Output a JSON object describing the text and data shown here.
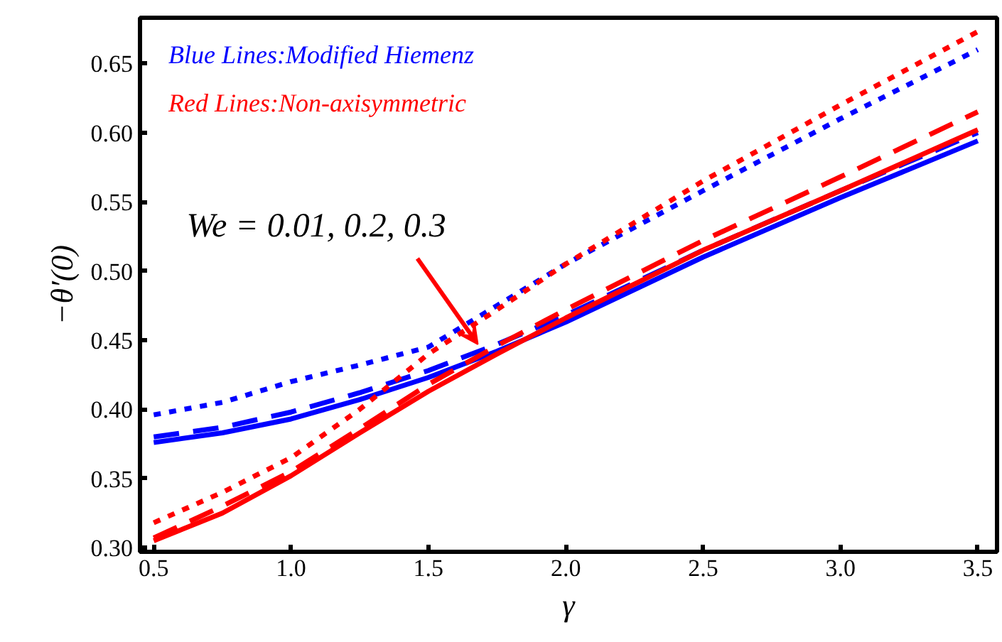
{
  "chart_data": {
    "type": "line",
    "xlabel": "γ",
    "ylabel": "−θ′(0)",
    "xlim": [
      0.45,
      3.57
    ],
    "ylim": [
      0.297,
      0.683
    ],
    "xticks": [
      {
        "value": 0.5,
        "label": "0.5"
      },
      {
        "value": 1.0,
        "label": "1.0"
      },
      {
        "value": 1.5,
        "label": "1.5"
      },
      {
        "value": 2.0,
        "label": "2.0"
      },
      {
        "value": 2.5,
        "label": "2.5"
      },
      {
        "value": 3.0,
        "label": "3.0"
      },
      {
        "value": 3.5,
        "label": "3.5"
      }
    ],
    "yticks": [
      {
        "value": 0.3,
        "label": "0.30"
      },
      0.35,
      {
        "value": 0.4,
        "label": "0.40"
      },
      0.45,
      {
        "value": 0.5,
        "label": "0.50"
      },
      0.55,
      {
        "value": 0.6,
        "label": "0.60"
      },
      0.65
    ],
    "grid": false,
    "x": [
      0.5,
      0.75,
      1.0,
      1.25,
      1.5,
      1.75,
      2.0,
      2.5,
      3.0,
      3.5
    ],
    "series": [
      {
        "color": "#0000ff",
        "line_style": "solid",
        "values": [
          0.376,
          0.383,
          0.393,
          0.407,
          0.423,
          0.442,
          0.463,
          0.51,
          0.553,
          0.594
        ]
      },
      {
        "color": "#0000ff",
        "line_style": "dashed",
        "values": [
          0.38,
          0.387,
          0.398,
          0.412,
          0.428,
          0.447,
          0.468,
          0.515,
          0.558,
          0.6
        ]
      },
      {
        "color": "#0000ff",
        "line_style": "dotted",
        "values": [
          0.396,
          0.405,
          0.42,
          0.432,
          0.445,
          0.475,
          0.505,
          0.558,
          0.61,
          0.66
        ]
      },
      {
        "color": "#ff0000",
        "line_style": "solid",
        "values": [
          0.305,
          0.325,
          0.352,
          0.383,
          0.413,
          0.44,
          0.466,
          0.515,
          0.558,
          0.602
        ]
      },
      {
        "color": "#ff0000",
        "line_style": "dashed",
        "values": [
          0.307,
          0.33,
          0.355,
          0.386,
          0.418,
          0.446,
          0.472,
          0.522,
          0.568,
          0.615
        ]
      },
      {
        "color": "#ff0000",
        "line_style": "dotted",
        "values": [
          0.318,
          0.34,
          0.365,
          0.4,
          0.44,
          0.472,
          0.505,
          0.565,
          0.62,
          0.673
        ]
      }
    ],
    "annotations": [
      "Blue Lines:Modified Hiemenz",
      "Red Lines:Non-axisymmetric",
      {
        "text": "We = 0.01, 0.2, 0.3",
        "x": 1.68,
        "y": 0.447
      }
    ]
  }
}
